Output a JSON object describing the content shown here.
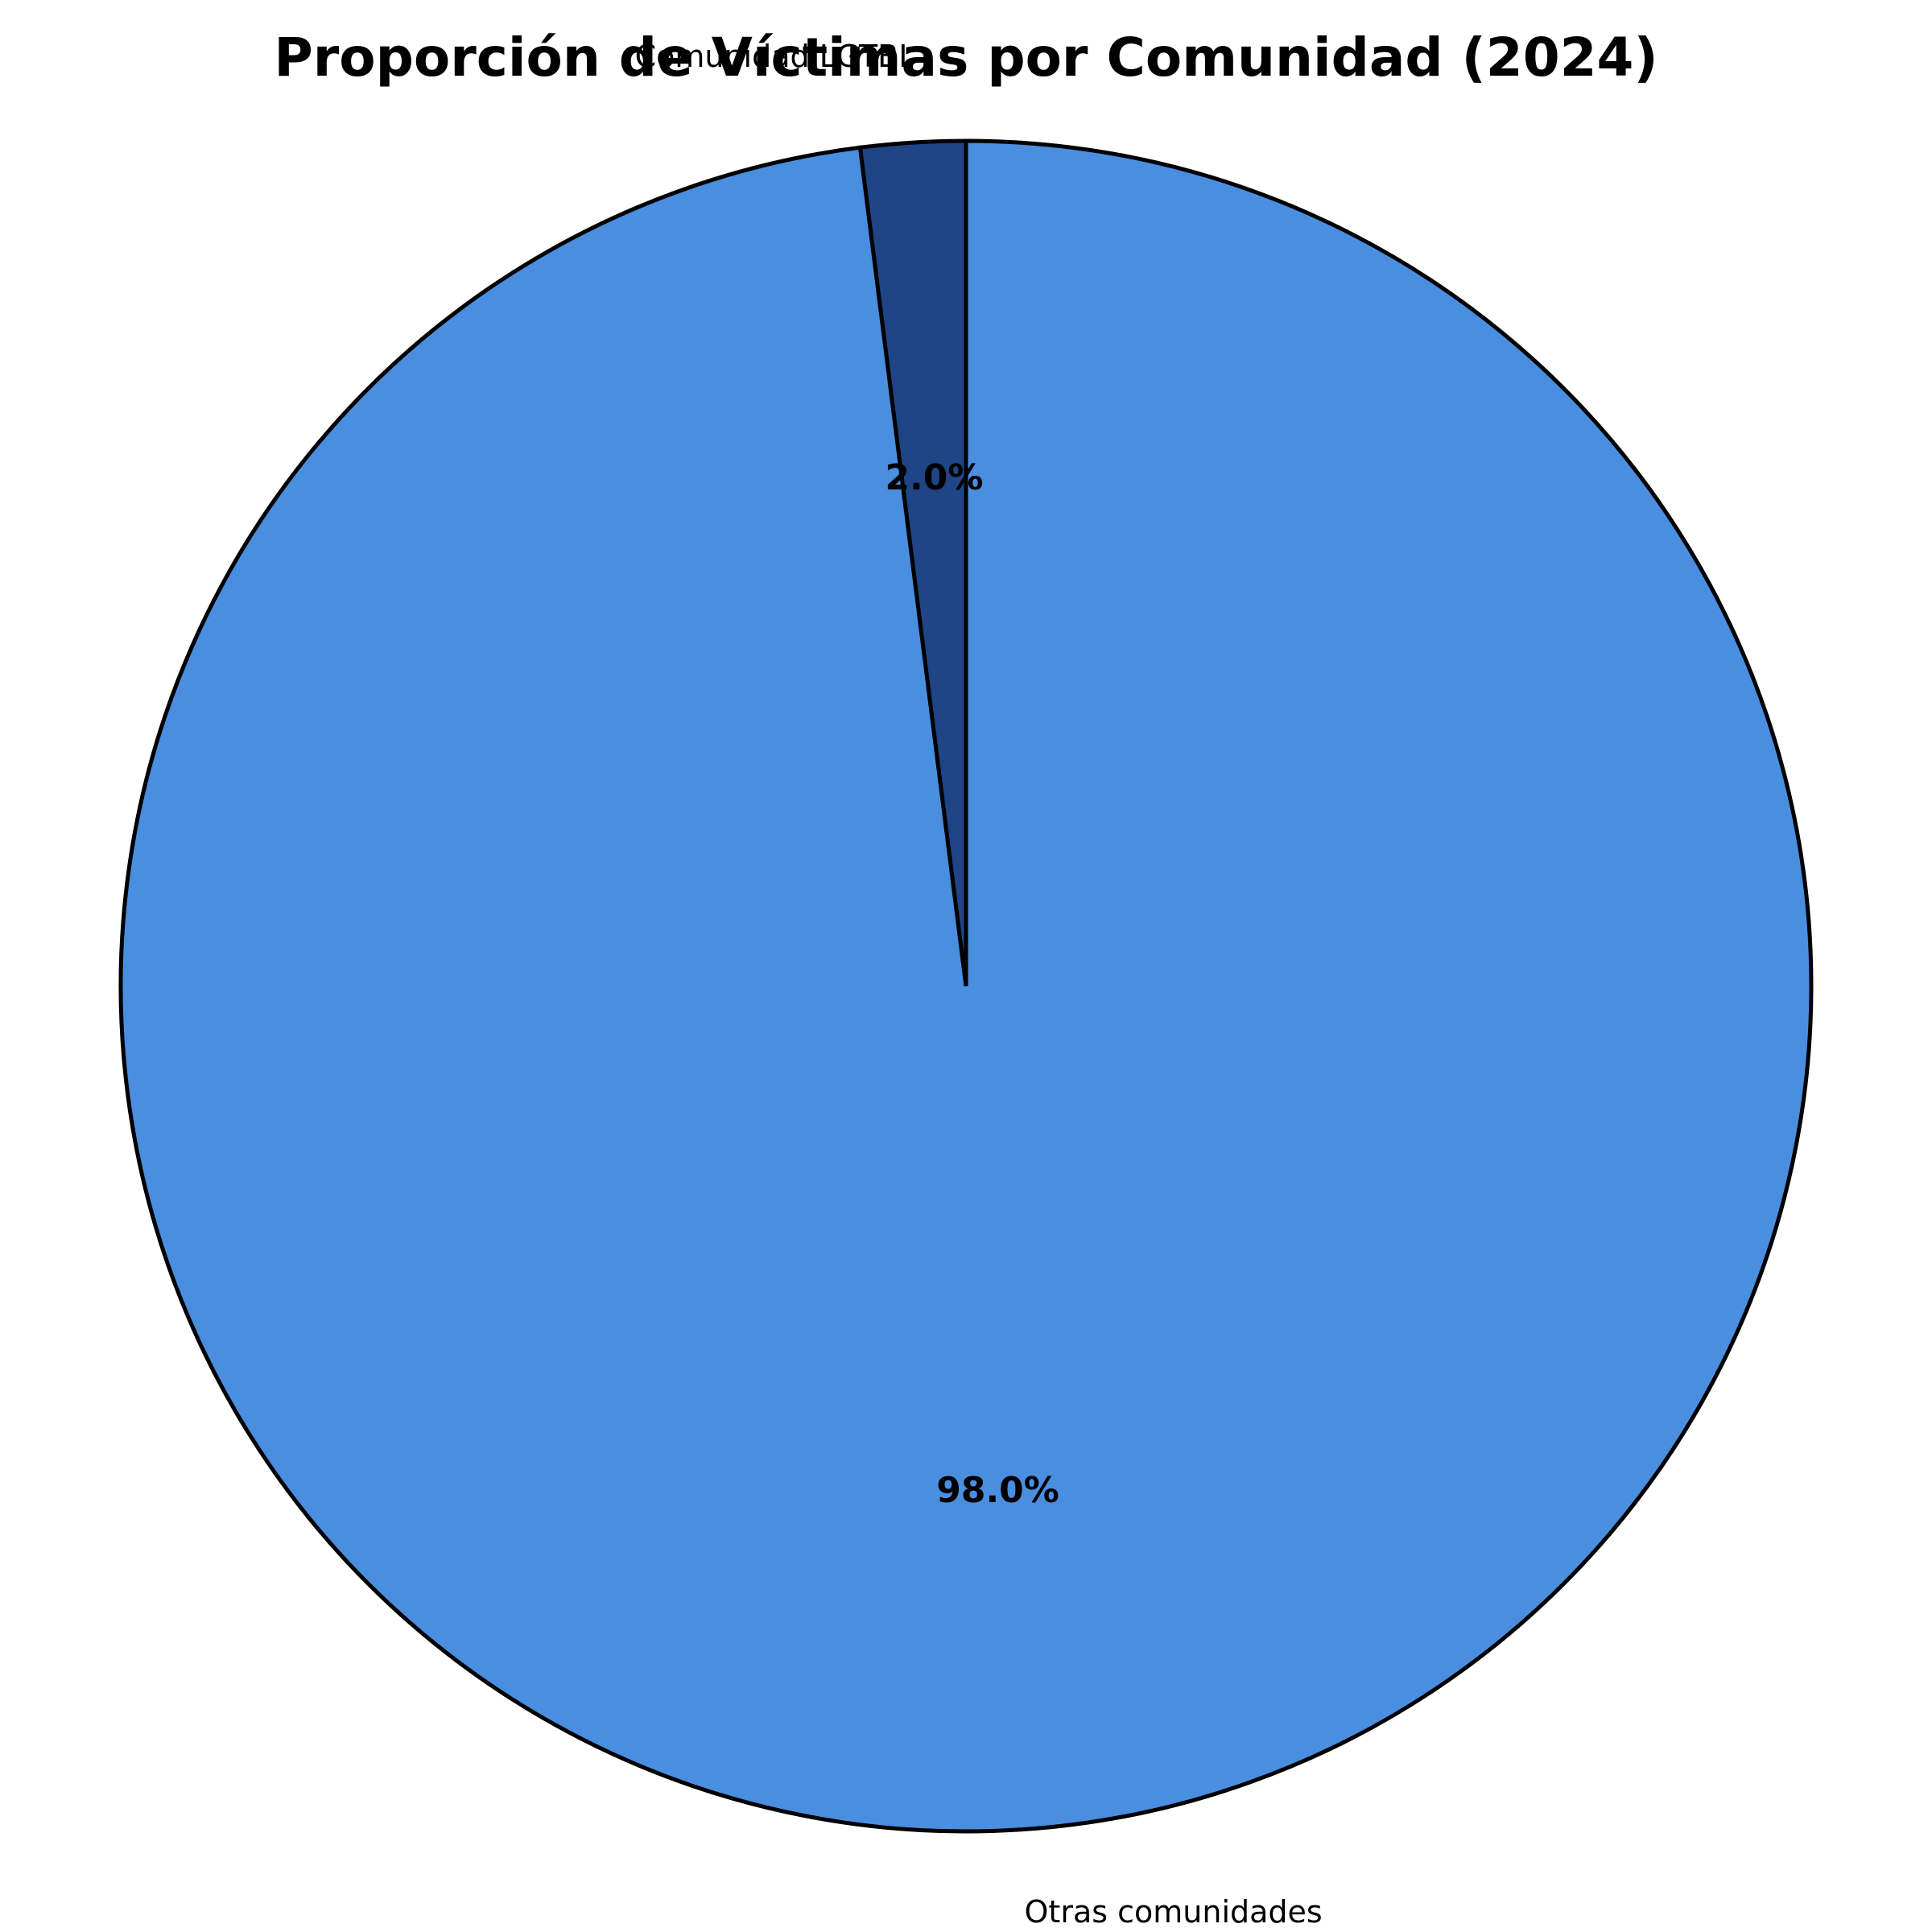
{
  "chart_data": {
    "type": "pie",
    "title": "Proporción de Víctimas por Comunidad (2024)",
    "start_angle_deg": 90,
    "direction": "counterclockwise",
    "slices": [
      {
        "label": "Comunidad LGTBI",
        "value": 2.0,
        "pct_label": "2.0%",
        "color": "#1f4586"
      },
      {
        "label": "Otras comunidades",
        "value": 98.0,
        "pct_label": "98.0%",
        "color": "#4a8ee0"
      }
    ],
    "edge_color": "#000000"
  }
}
